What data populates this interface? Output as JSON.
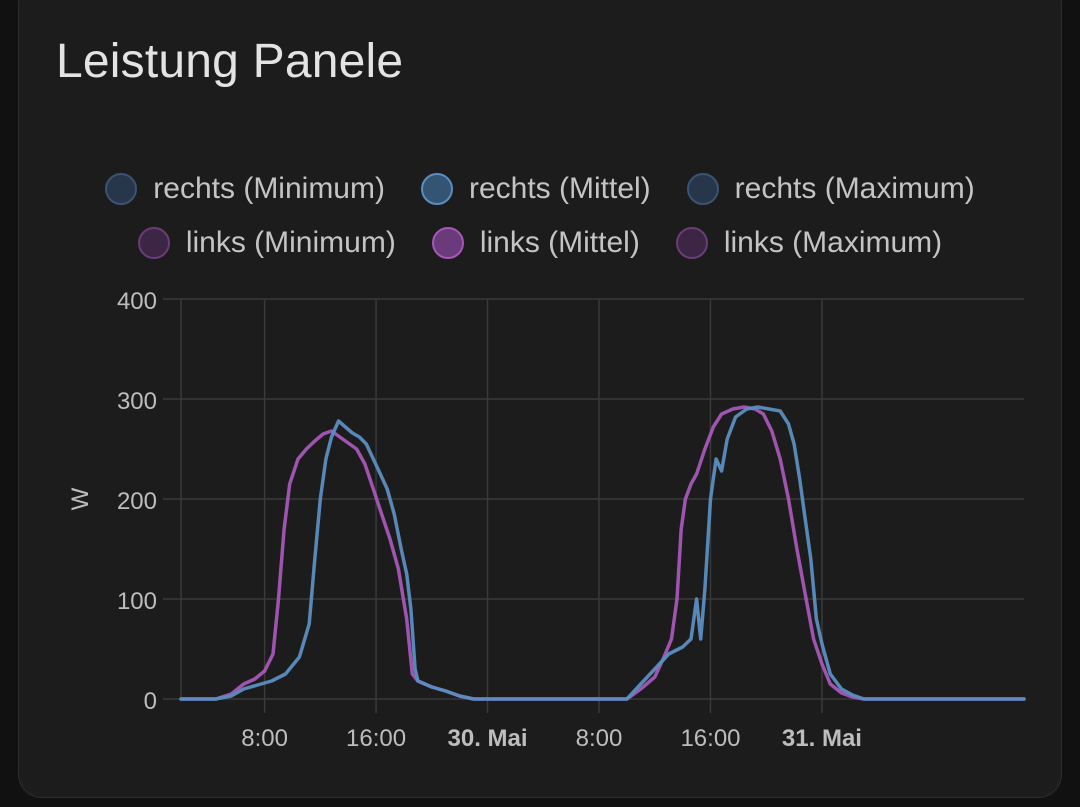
{
  "card": {
    "title": "Leistung Panele"
  },
  "colors": {
    "rechts": "#5b8ec0",
    "links": "#a657b8",
    "grid": "#3a3a3a",
    "tick": "#bdbdbd"
  },
  "legend": [
    {
      "label": "rechts (Minimum)",
      "group": "rechts",
      "fill": "#27364a",
      "border": "#3c5373"
    },
    {
      "label": "rechts (Mittel)",
      "group": "rechts",
      "fill": "#345474",
      "border": "#5b8ec0"
    },
    {
      "label": "rechts (Maximum)",
      "group": "rechts",
      "fill": "#27364a",
      "border": "#3c5373"
    },
    {
      "label": "links (Minimum)",
      "group": "links",
      "fill": "#3d2645",
      "border": "#6a3d78"
    },
    {
      "label": "links (Mittel)",
      "group": "links",
      "fill": "#6b3a7a",
      "border": "#a657b8"
    },
    {
      "label": "links (Maximum)",
      "group": "links",
      "fill": "#3d2645",
      "border": "#6a3d78"
    }
  ],
  "chart_data": {
    "type": "line",
    "title": "",
    "ylabel": "W",
    "ylim": [
      0,
      400
    ],
    "yticks": [
      0,
      100,
      200,
      300,
      400
    ],
    "xlim_hours": [
      2,
      62.5
    ],
    "xticks": [
      {
        "hour": 8,
        "label": "8:00",
        "bold": false
      },
      {
        "hour": 16,
        "label": "16:00",
        "bold": false
      },
      {
        "hour": 24,
        "label": "30. Mai",
        "bold": true
      },
      {
        "hour": 32,
        "label": "8:00",
        "bold": false
      },
      {
        "hour": 40,
        "label": "16:00",
        "bold": false
      },
      {
        "hour": 48,
        "label": "31. Mai",
        "bold": true
      }
    ],
    "series": [
      {
        "name": "rechts (Mittel)",
        "color": "#5b8ec0",
        "points": [
          [
            2,
            0
          ],
          [
            4.5,
            0
          ],
          [
            5.6,
            3
          ],
          [
            6.5,
            10
          ],
          [
            7.5,
            14
          ],
          [
            8.5,
            18
          ],
          [
            9.5,
            25
          ],
          [
            10.5,
            42
          ],
          [
            11.2,
            75
          ],
          [
            11.6,
            140
          ],
          [
            12,
            200
          ],
          [
            12.4,
            240
          ],
          [
            12.8,
            262
          ],
          [
            13.3,
            278
          ],
          [
            13.8,
            272
          ],
          [
            14.3,
            266
          ],
          [
            14.8,
            262
          ],
          [
            15.3,
            255
          ],
          [
            15.8,
            240
          ],
          [
            16.3,
            225
          ],
          [
            16.8,
            210
          ],
          [
            17.3,
            185
          ],
          [
            17.8,
            150
          ],
          [
            18.2,
            125
          ],
          [
            18.5,
            90
          ],
          [
            18.8,
            30
          ],
          [
            19,
            18
          ],
          [
            20,
            12
          ],
          [
            21,
            8
          ],
          [
            22,
            3
          ],
          [
            23,
            0
          ],
          [
            32,
            0
          ],
          [
            34,
            0
          ],
          [
            35,
            15
          ],
          [
            36,
            30
          ],
          [
            37,
            45
          ],
          [
            38,
            52
          ],
          [
            38.6,
            60
          ],
          [
            39,
            100
          ],
          [
            39.3,
            60
          ],
          [
            39.6,
            110
          ],
          [
            40,
            200
          ],
          [
            40.4,
            240
          ],
          [
            40.8,
            228
          ],
          [
            41.2,
            260
          ],
          [
            41.8,
            282
          ],
          [
            42.6,
            290
          ],
          [
            43.4,
            292
          ],
          [
            44.2,
            290
          ],
          [
            45,
            288
          ],
          [
            45.6,
            275
          ],
          [
            46,
            255
          ],
          [
            46.4,
            220
          ],
          [
            46.8,
            180
          ],
          [
            47.2,
            140
          ],
          [
            47.6,
            80
          ],
          [
            48,
            55
          ],
          [
            48.6,
            25
          ],
          [
            49.4,
            10
          ],
          [
            50.2,
            4
          ],
          [
            51,
            0
          ],
          [
            62.5,
            0
          ]
        ]
      },
      {
        "name": "links (Mittel)",
        "color": "#a657b8",
        "points": [
          [
            2,
            0
          ],
          [
            4.5,
            0
          ],
          [
            5.6,
            5
          ],
          [
            6.5,
            15
          ],
          [
            7.3,
            20
          ],
          [
            8,
            28
          ],
          [
            8.6,
            45
          ],
          [
            9,
            100
          ],
          [
            9.4,
            170
          ],
          [
            9.8,
            215
          ],
          [
            10.4,
            240
          ],
          [
            11,
            250
          ],
          [
            11.6,
            258
          ],
          [
            12.2,
            265
          ],
          [
            12.8,
            268
          ],
          [
            13.4,
            262
          ],
          [
            14,
            256
          ],
          [
            14.6,
            250
          ],
          [
            15.2,
            235
          ],
          [
            15.8,
            210
          ],
          [
            16.4,
            185
          ],
          [
            17,
            160
          ],
          [
            17.6,
            130
          ],
          [
            18.2,
            80
          ],
          [
            18.6,
            25
          ],
          [
            19,
            18
          ],
          [
            20,
            12
          ],
          [
            21,
            8
          ],
          [
            22,
            3
          ],
          [
            23,
            0
          ],
          [
            32,
            0
          ],
          [
            34,
            0
          ],
          [
            35,
            10
          ],
          [
            36,
            22
          ],
          [
            36.6,
            40
          ],
          [
            37.2,
            60
          ],
          [
            37.6,
            100
          ],
          [
            37.9,
            170
          ],
          [
            38.2,
            200
          ],
          [
            38.6,
            215
          ],
          [
            39,
            225
          ],
          [
            39.6,
            250
          ],
          [
            40.2,
            272
          ],
          [
            40.8,
            285
          ],
          [
            41.6,
            290
          ],
          [
            42.4,
            292
          ],
          [
            43.2,
            290
          ],
          [
            43.8,
            285
          ],
          [
            44.4,
            268
          ],
          [
            45,
            240
          ],
          [
            45.6,
            200
          ],
          [
            46.2,
            150
          ],
          [
            46.8,
            105
          ],
          [
            47.4,
            60
          ],
          [
            48,
            35
          ],
          [
            48.6,
            15
          ],
          [
            49.4,
            6
          ],
          [
            50.2,
            2
          ],
          [
            51,
            0
          ],
          [
            62.5,
            0
          ]
        ]
      }
    ]
  }
}
